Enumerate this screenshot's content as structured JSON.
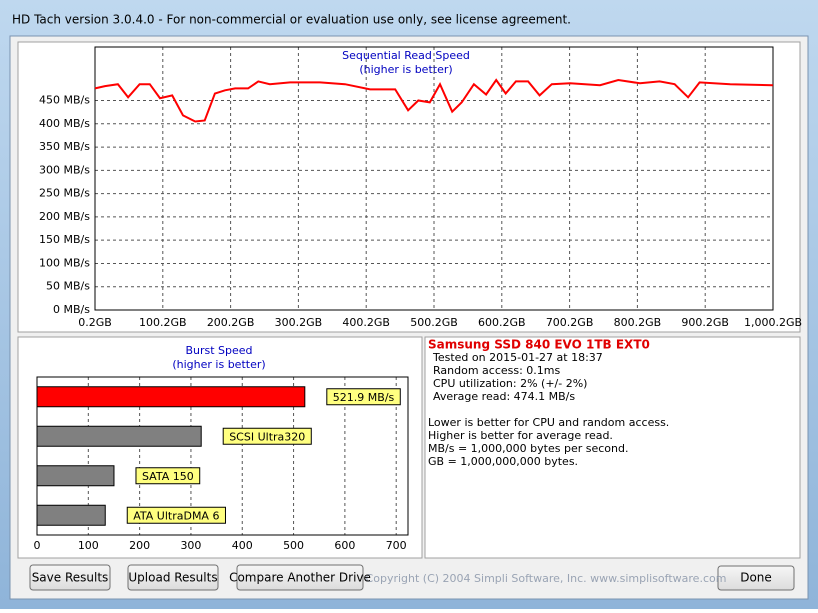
{
  "window": {
    "title": "HD Tach version 3.0.4.0  - For non-commercial or evaluation use only, see license agreement."
  },
  "chart_data": [
    {
      "type": "line",
      "title": "Sequential Read Speed",
      "subtitle": "(higher is better)",
      "color": "#ff0000",
      "grid": true,
      "x": [
        0.2,
        15,
        34,
        49,
        66,
        81,
        96,
        114,
        130,
        148,
        162,
        177,
        192,
        207,
        226,
        241,
        258,
        288,
        332,
        369,
        406,
        443,
        462,
        477,
        494,
        509,
        527,
        541,
        559,
        577,
        592,
        606,
        621,
        639,
        656,
        674,
        701,
        745,
        772,
        804,
        833,
        855,
        875,
        892,
        937,
        1000
      ],
      "values": [
        476,
        481,
        485,
        457,
        485,
        485,
        455,
        461,
        418,
        405,
        407,
        465,
        472,
        476,
        476,
        491,
        485,
        489,
        489,
        485,
        474,
        474,
        429,
        450,
        446,
        485,
        426,
        446,
        485,
        463,
        494,
        465,
        491,
        491,
        461,
        485,
        487,
        483,
        494,
        487,
        491,
        485,
        457,
        489,
        485,
        483
      ],
      "xlim": [
        0.2,
        1000.2
      ],
      "xticks": [
        {
          "value": 0.2,
          "label": "0.2GB"
        },
        {
          "value": 100.2,
          "label": "100.2GB"
        },
        {
          "value": 200.2,
          "label": "200.2GB"
        },
        {
          "value": 300.2,
          "label": "300.2GB"
        },
        {
          "value": 400.2,
          "label": "400.2GB"
        },
        {
          "value": 500.2,
          "label": "500.2GB"
        },
        {
          "value": 600.2,
          "label": "600.2GB"
        },
        {
          "value": 700.2,
          "label": "700.2GB"
        },
        {
          "value": 800.2,
          "label": "800.2GB"
        },
        {
          "value": 900.2,
          "label": "900.2GB"
        },
        {
          "value": 1000.2,
          "label": "1,000.2GB"
        }
      ],
      "ylim": [
        0,
        565
      ],
      "yticks": [
        {
          "value": 0,
          "label": "0 MB/s"
        },
        {
          "value": 50,
          "label": "50 MB/s"
        },
        {
          "value": 100,
          "label": "100 MB/s"
        },
        {
          "value": 150,
          "label": "150 MB/s"
        },
        {
          "value": 200,
          "label": "200 MB/s"
        },
        {
          "value": 250,
          "label": "250 MB/s"
        },
        {
          "value": 300,
          "label": "300 MB/s"
        },
        {
          "value": 350,
          "label": "350 MB/s"
        },
        {
          "value": 400,
          "label": "400 MB/s"
        },
        {
          "value": 450,
          "label": "450 MB/s"
        }
      ]
    },
    {
      "type": "hbar",
      "title": "Burst Speed",
      "subtitle": "(higher is better)",
      "values": [
        521.9,
        320,
        150,
        133
      ],
      "labels": [
        "521.9 MB/s",
        "SCSI Ultra320",
        "SATA 150",
        "ATA UltraDMA 6"
      ],
      "colors": [
        "#ff0000",
        "#808080",
        "#808080",
        "#808080"
      ],
      "xlim": [
        0,
        723
      ],
      "xticks": [
        0,
        100,
        200,
        300,
        400,
        500,
        600,
        700
      ],
      "grid": true
    }
  ],
  "info": {
    "drive": "Samsung SSD 840 EVO 1TB EXT0",
    "results": [
      "Tested on 2015-01-27 at 18:37",
      "Random access: 0.1ms",
      "CPU utilization: 2% (+/- 2%)",
      "Average read: 474.1 MB/s"
    ],
    "notes": [
      "Lower is better for CPU and random access.",
      "Higher is better for average read.",
      "MB/s = 1,000,000 bytes per second.",
      "GB = 1,000,000,000 bytes."
    ]
  },
  "buttons": [
    "Save Results",
    "Upload Results",
    "Compare Another Drive"
  ],
  "copyright": "Copyright (C) 2004 Simpli Software, Inc. www.simplisoftware.com",
  "done": "Done"
}
